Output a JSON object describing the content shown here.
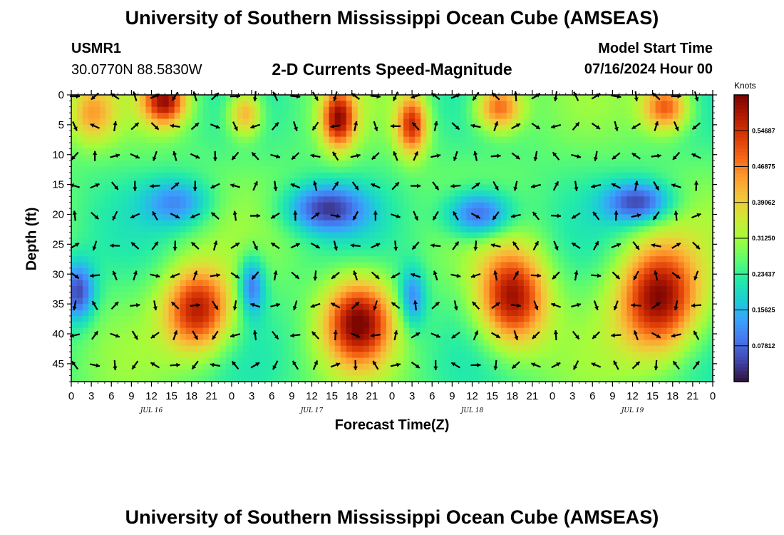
{
  "header": {
    "title": "University of Southern Mississippi Ocean Cube (AMSEAS)",
    "station": "USMR1",
    "coords": "30.0770N  88.5830W",
    "subtitle": "2-D Currents Speed-Magnitude",
    "model_label": "Model Start Time",
    "model_time": "07/16/2024 Hour 00"
  },
  "footer": {
    "title": "University of Southern Mississippi Ocean Cube (AMSEAS)"
  },
  "chart_data": {
    "type": "heatmap",
    "title": "2-D Currents Speed-Magnitude",
    "xlabel": "Forecast Time(Z)",
    "ylabel": "Depth (ft)",
    "x_ticks": [
      "0",
      "3",
      "6",
      "9",
      "12",
      "15",
      "18",
      "21",
      "0",
      "3",
      "6",
      "9",
      "12",
      "15",
      "18",
      "21",
      "0",
      "3",
      "6",
      "9",
      "12",
      "15",
      "18",
      "21",
      "0",
      "3",
      "6",
      "9",
      "12",
      "15",
      "18",
      "21",
      "0"
    ],
    "x_range_hours": [
      0,
      96
    ],
    "day_labels": [
      {
        "label": "JUL 16",
        "hour": 12
      },
      {
        "label": "JUL 17",
        "hour": 36
      },
      {
        "label": "JUL 18",
        "hour": 60
      },
      {
        "label": "JUL 19",
        "hour": 84
      }
    ],
    "y_ticks": [
      0,
      5,
      10,
      15,
      20,
      25,
      30,
      35,
      40,
      45
    ],
    "y_range_ft": [
      0,
      48
    ],
    "colorbar": {
      "unit": "Knots",
      "range": [
        0.0,
        0.625
      ],
      "tick_labels": [
        "0.07812",
        "0.15625",
        "0.23437",
        "0.31250",
        "0.39062",
        "0.46875",
        "0.54687"
      ],
      "tick_values": [
        0.07812,
        0.15625,
        0.23437,
        0.3125,
        0.39062,
        0.46875,
        0.54687
      ]
    },
    "colormap": [
      "#30123b",
      "#4145ab",
      "#4675ed",
      "#39a2fc",
      "#1bcfd4",
      "#24eca6",
      "#61fc6c",
      "#a4fc3b",
      "#d1e834",
      "#f3c63a",
      "#fe9b2d",
      "#f36315",
      "#d93806",
      "#b11901",
      "#7a0402"
    ],
    "speed_features": [
      {
        "hour": 14,
        "depth_ft": 1,
        "speed": 0.58,
        "sx_h": 3.2,
        "sy_ft": 4
      },
      {
        "hour": 3,
        "depth_ft": 3,
        "speed": 0.42,
        "sx_h": 3.5,
        "sy_ft": 5
      },
      {
        "hour": 26,
        "depth_ft": 3,
        "speed": 0.46,
        "sx_h": 2.5,
        "sy_ft": 4
      },
      {
        "hour": 40,
        "depth_ft": 4,
        "speed": 0.58,
        "sx_h": 2.5,
        "sy_ft": 5
      },
      {
        "hour": 51,
        "depth_ft": 5,
        "speed": 0.55,
        "sx_h": 2.3,
        "sy_ft": 5
      },
      {
        "hour": 64,
        "depth_ft": 2,
        "speed": 0.52,
        "sx_h": 3.5,
        "sy_ft": 4
      },
      {
        "hour": 89,
        "depth_ft": 2,
        "speed": 0.52,
        "sx_h": 3.5,
        "sy_ft": 4
      },
      {
        "hour": 1,
        "depth_ft": 33,
        "speed": 0.05,
        "sx_h": 2.5,
        "sy_ft": 5
      },
      {
        "hour": 16,
        "depth_ft": 18,
        "speed": 0.12,
        "sx_h": 5,
        "sy_ft": 4
      },
      {
        "hour": 38,
        "depth_ft": 19,
        "speed": 0.06,
        "sx_h": 6,
        "sy_ft": 4
      },
      {
        "hour": 61,
        "depth_ft": 20,
        "speed": 0.04,
        "sx_h": 5,
        "sy_ft": 4
      },
      {
        "hour": 85,
        "depth_ft": 18,
        "speed": 0.05,
        "sx_h": 5,
        "sy_ft": 3.5
      },
      {
        "hour": 19,
        "depth_ft": 36,
        "speed": 0.58,
        "sx_h": 5,
        "sy_ft": 7
      },
      {
        "hour": 43,
        "depth_ft": 38,
        "speed": 0.6,
        "sx_h": 5,
        "sy_ft": 7
      },
      {
        "hour": 66,
        "depth_ft": 34,
        "speed": 0.6,
        "sx_h": 5,
        "sy_ft": 8
      },
      {
        "hour": 88,
        "depth_ft": 34,
        "speed": 0.62,
        "sx_h": 6,
        "sy_ft": 9
      },
      {
        "hour": 27,
        "depth_ft": 32,
        "speed": 0.08,
        "sx_h": 2,
        "sy_ft": 5
      },
      {
        "hour": 51,
        "depth_ft": 34,
        "speed": 0.1,
        "sx_h": 2,
        "sy_ft": 5
      }
    ],
    "arrows": {
      "hours": [
        0,
        3,
        6,
        9,
        12,
        15,
        18,
        21,
        24,
        27,
        30,
        33,
        36,
        39,
        42,
        45,
        48,
        51,
        54,
        57,
        60,
        63,
        66,
        69,
        72,
        75,
        78,
        81,
        84,
        87,
        90,
        93,
        96
      ],
      "depths_ft": [
        0,
        5,
        10,
        15,
        20,
        25,
        30,
        35,
        40,
        45
      ]
    }
  }
}
